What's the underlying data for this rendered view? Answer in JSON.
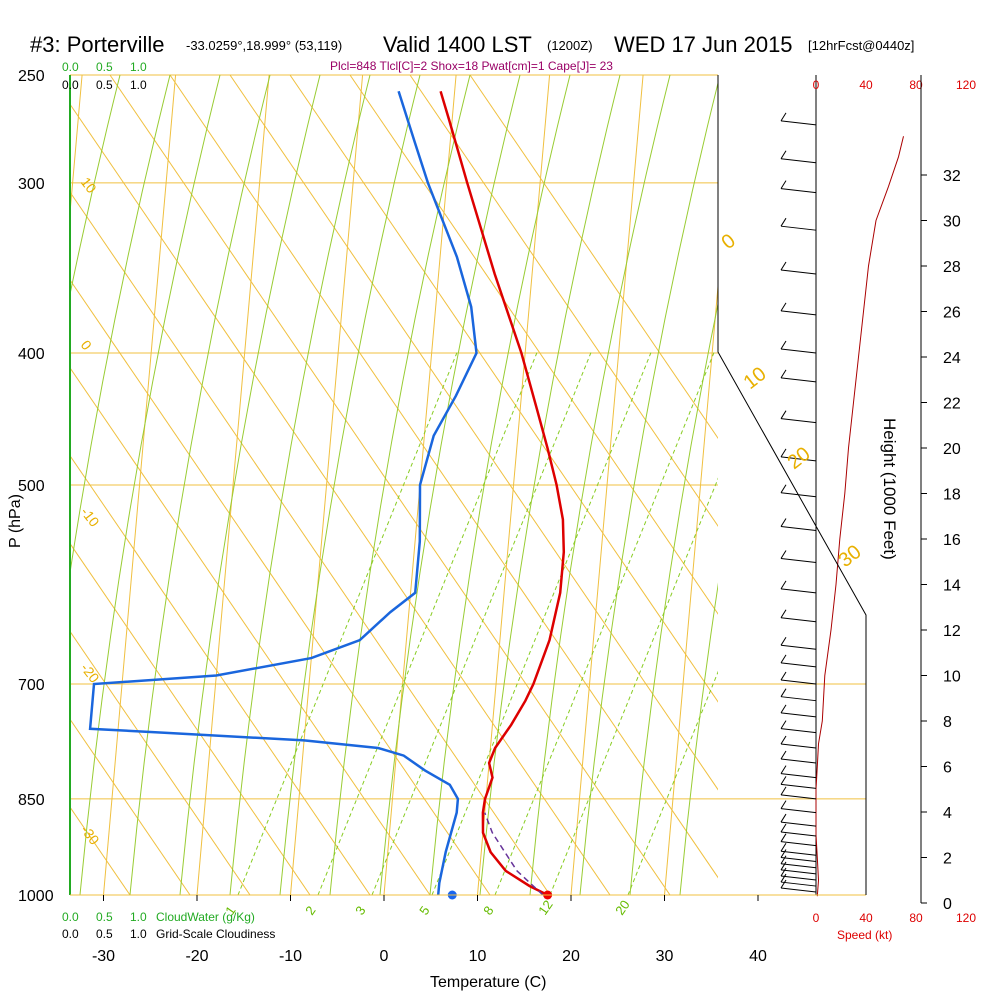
{
  "header": {
    "station": "#3: Porterville",
    "coords": "-33.0259°,18.999° (53,119)",
    "valid": "Valid 1400 LST",
    "utc": "(1200Z)",
    "date": "WED 17 Jun 2015",
    "forecast": "[12hrFcst@0440z]",
    "params": "Plcl=848 Tlcl[C]=2 Shox=18 Pwat[cm]=1 Cape[J]= 23"
  },
  "chart_data": {
    "type": "skew-t",
    "xlabel": "Temperature (C)",
    "ylabel": "P (hPa)",
    "right_label": "Height (1000 Feet)",
    "pressure_ticks": [
      1000,
      850,
      700,
      500,
      400,
      300,
      250
    ],
    "temperature_ticks": [
      -30,
      -20,
      -10,
      0,
      10,
      20,
      30,
      40
    ],
    "height_ticks": [
      0,
      2,
      4,
      6,
      8,
      10,
      12,
      14,
      16,
      18,
      20,
      22,
      24,
      26,
      28,
      30,
      32
    ],
    "speed_label": "Speed (kt)",
    "speed_ticks": [
      0,
      40,
      80,
      120
    ],
    "cloudwater_label": "CloudWater (g/Kg)",
    "cloudwater_ticks": [
      "0.0",
      "0.5",
      "1.0"
    ],
    "cloudiness_label": "Grid-Scale Cloudiness",
    "cloudiness_ticks": [
      "0.0",
      "0.5",
      "1.0"
    ],
    "isotherm_labels": [
      "10",
      "0",
      "-10",
      "-20",
      "-30"
    ],
    "dry_adiabat_labels": [
      "0",
      "10",
      "20",
      "30"
    ],
    "mixing_ratio_labels": [
      "1",
      "2",
      "3",
      "5",
      "8",
      "12",
      "20"
    ],
    "temperature_profile": [
      {
        "p": 1000,
        "t": 17.5
      },
      {
        "p": 985,
        "t": 15.5
      },
      {
        "p": 960,
        "t": 12.8
      },
      {
        "p": 930,
        "t": 11.0
      },
      {
        "p": 900,
        "t": 10.0
      },
      {
        "p": 870,
        "t": 9.8
      },
      {
        "p": 850,
        "t": 9.9
      },
      {
        "p": 820,
        "t": 10.5
      },
      {
        "p": 800,
        "t": 10.0
      },
      {
        "p": 780,
        "t": 10.5
      },
      {
        "p": 750,
        "t": 12.0
      },
      {
        "p": 720,
        "t": 13.3
      },
      {
        "p": 700,
        "t": 14.0
      },
      {
        "p": 650,
        "t": 15.3
      },
      {
        "p": 600,
        "t": 16.0
      },
      {
        "p": 560,
        "t": 16.0
      },
      {
        "p": 530,
        "t": 15.6
      },
      {
        "p": 500,
        "t": 14.6
      },
      {
        "p": 470,
        "t": 13.3
      },
      {
        "p": 440,
        "t": 11.8
      },
      {
        "p": 400,
        "t": 9.6
      },
      {
        "p": 350,
        "t": 6.0
      },
      {
        "p": 300,
        "t": 2.2
      },
      {
        "p": 270,
        "t": -0.3
      },
      {
        "p": 257,
        "t": -1.5
      }
    ],
    "dewpoint_profile": [
      {
        "p": 1000,
        "t": 5.8
      },
      {
        "p": 980,
        "t": 5.8
      },
      {
        "p": 930,
        "t": 6.2
      },
      {
        "p": 870,
        "t": 7.0
      },
      {
        "p": 850,
        "t": 7.0
      },
      {
        "p": 830,
        "t": 6.0
      },
      {
        "p": 810,
        "t": 3.2
      },
      {
        "p": 790,
        "t": 0.8
      },
      {
        "p": 780,
        "t": -2.0
      },
      {
        "p": 770,
        "t": -10.0
      },
      {
        "p": 760,
        "t": -25.0
      },
      {
        "p": 755,
        "t": -33.0
      },
      {
        "p": 700,
        "t": -33.0
      },
      {
        "p": 690,
        "t": -20.0
      },
      {
        "p": 670,
        "t": -10.0
      },
      {
        "p": 650,
        "t": -5.0
      },
      {
        "p": 620,
        "t": -2.0
      },
      {
        "p": 600,
        "t": 0.5
      },
      {
        "p": 580,
        "t": 0.5
      },
      {
        "p": 550,
        "t": 0.5
      },
      {
        "p": 500,
        "t": 0.0
      },
      {
        "p": 460,
        "t": 1.0
      },
      {
        "p": 430,
        "t": 3.0
      },
      {
        "p": 400,
        "t": 4.8
      },
      {
        "p": 370,
        "t": 3.8
      },
      {
        "p": 340,
        "t": 1.8
      },
      {
        "p": 300,
        "t": -2.0
      },
      {
        "p": 280,
        "t": -3.8
      },
      {
        "p": 257,
        "t": -6.0
      }
    ],
    "parcel_path": [
      {
        "p": 1000,
        "t": 17.0
      },
      {
        "p": 960,
        "t": 14.0
      },
      {
        "p": 900,
        "t": 11.0
      },
      {
        "p": 870,
        "t": 10.0
      }
    ],
    "surface_temperature": 17.5,
    "surface_dewpoint": 7.3,
    "wind_speed_profile": [
      {
        "h": 0.3,
        "s": 1
      },
      {
        "h": 1,
        "s": 2
      },
      {
        "h": 2,
        "s": 1
      },
      {
        "h": 3,
        "s": 0
      },
      {
        "h": 4,
        "s": 0
      },
      {
        "h": 5,
        "s": 0
      },
      {
        "h": 6,
        "s": 1
      },
      {
        "h": 7,
        "s": 2
      },
      {
        "h": 8,
        "s": 5
      },
      {
        "h": 10,
        "s": 7
      },
      {
        "h": 12,
        "s": 12
      },
      {
        "h": 14,
        "s": 16
      },
      {
        "h": 16,
        "s": 19
      },
      {
        "h": 18,
        "s": 23
      },
      {
        "h": 20,
        "s": 26
      },
      {
        "h": 22,
        "s": 30
      },
      {
        "h": 24,
        "s": 34
      },
      {
        "h": 26,
        "s": 38
      },
      {
        "h": 28,
        "s": 42
      },
      {
        "h": 30,
        "s": 48
      },
      {
        "h": 31.5,
        "s": 58
      },
      {
        "h": 32.8,
        "s": 66
      },
      {
        "h": 33.7,
        "s": 70
      }
    ],
    "wind_barbs": [
      {
        "p": 995
      },
      {
        "p": 985
      },
      {
        "p": 975
      },
      {
        "p": 965
      },
      {
        "p": 955
      },
      {
        "p": 945
      },
      {
        "p": 935
      },
      {
        "p": 920
      },
      {
        "p": 905
      },
      {
        "p": 890
      },
      {
        "p": 870
      },
      {
        "p": 850
      },
      {
        "p": 835
      },
      {
        "p": 820
      },
      {
        "p": 800
      },
      {
        "p": 780
      },
      {
        "p": 760
      },
      {
        "p": 740
      },
      {
        "p": 720
      },
      {
        "p": 700
      },
      {
        "p": 680
      },
      {
        "p": 660
      },
      {
        "p": 630
      },
      {
        "p": 600
      },
      {
        "p": 570
      },
      {
        "p": 540
      },
      {
        "p": 510
      },
      {
        "p": 480
      },
      {
        "p": 450
      },
      {
        "p": 420
      },
      {
        "p": 400
      },
      {
        "p": 375
      },
      {
        "p": 350
      },
      {
        "p": 325
      },
      {
        "p": 305
      },
      {
        "p": 290
      },
      {
        "p": 272
      }
    ],
    "grid": true
  }
}
